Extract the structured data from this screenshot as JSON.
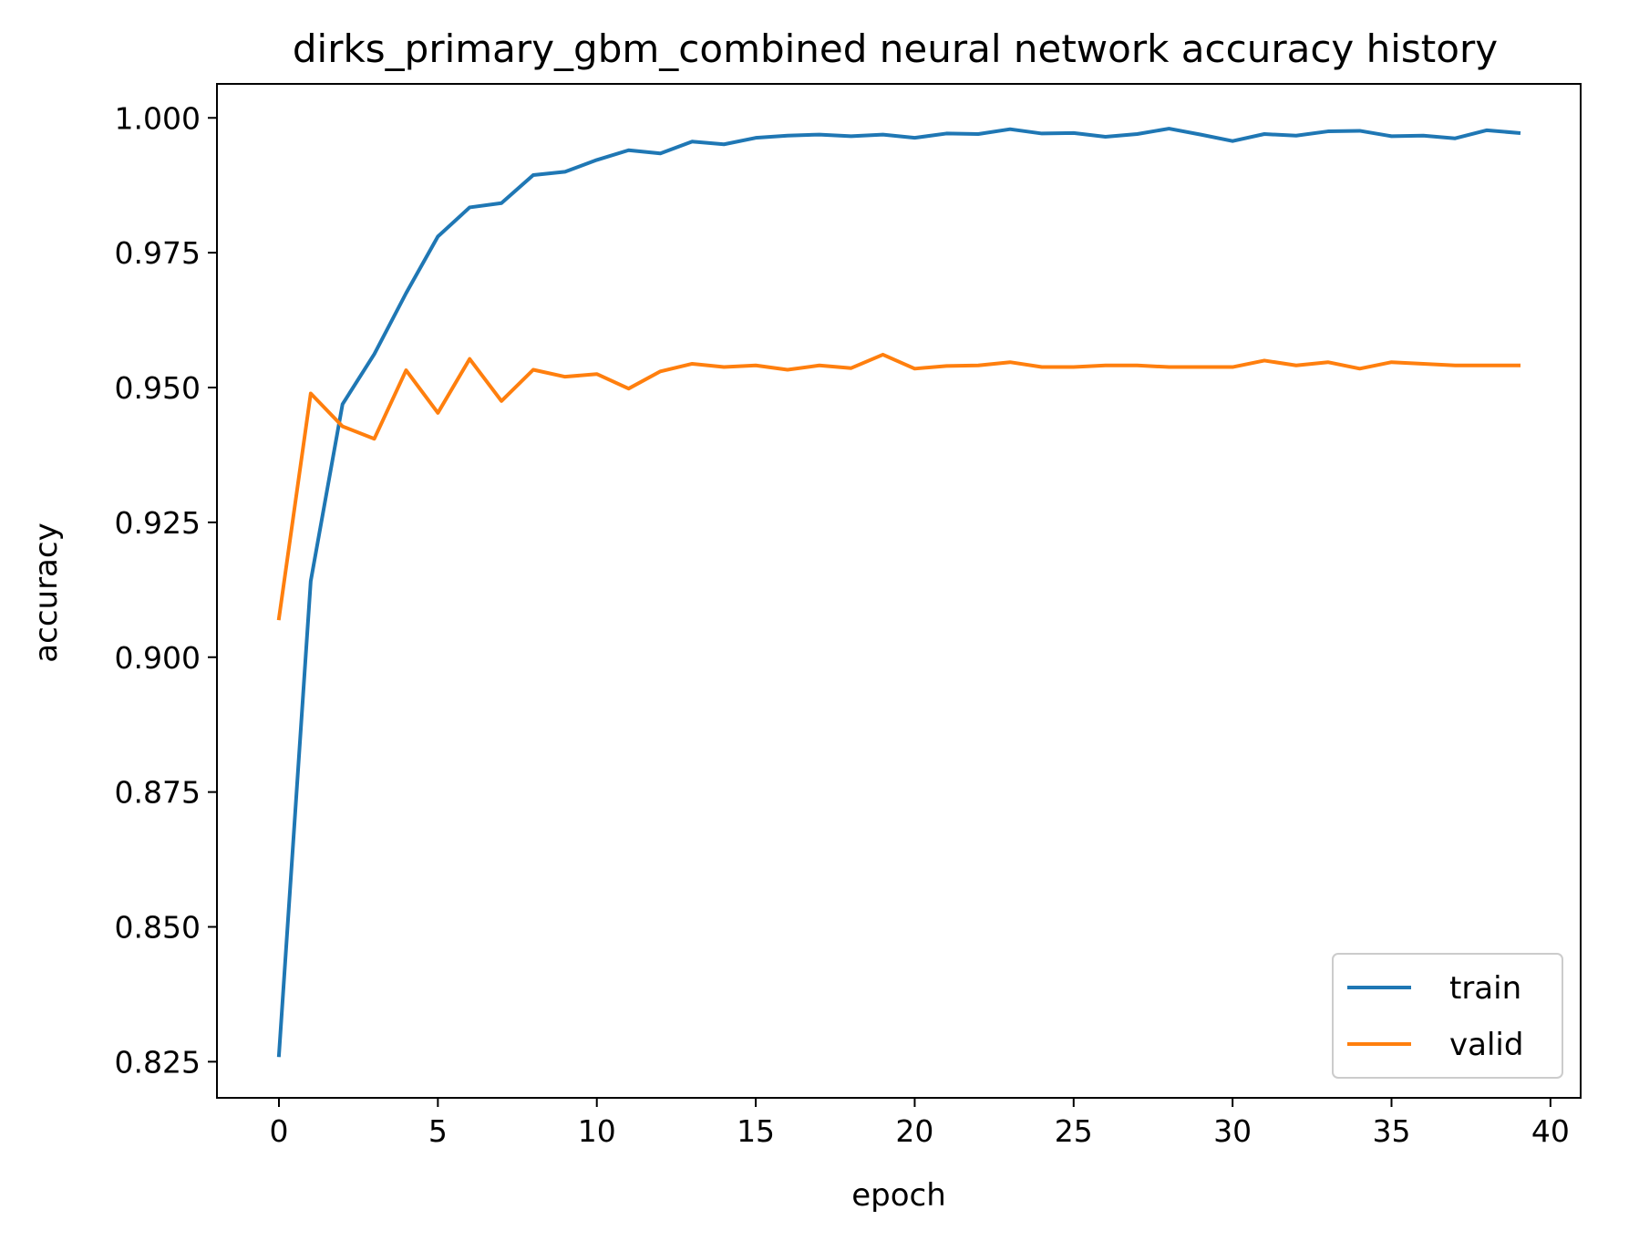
{
  "chart_data": {
    "type": "line",
    "title": "dirks_primary_gbm_combined neural network accuracy history",
    "xlabel": "epoch",
    "ylabel": "accuracy",
    "xlim": [
      -1.95,
      40.95
    ],
    "ylim": [
      0.8183,
      1.0063
    ],
    "xticks": [
      0,
      5,
      10,
      15,
      20,
      25,
      30,
      35,
      40
    ],
    "xtick_labels": [
      "0",
      "5",
      "10",
      "15",
      "20",
      "25",
      "30",
      "35",
      "40"
    ],
    "yticks": [
      0.825,
      0.85,
      0.875,
      0.9,
      0.925,
      0.95,
      0.975,
      1.0
    ],
    "ytick_labels": [
      "0.825",
      "0.850",
      "0.875",
      "0.900",
      "0.925",
      "0.950",
      "0.975",
      "1.000"
    ],
    "x": [
      0,
      1,
      2,
      3,
      4,
      5,
      6,
      7,
      8,
      9,
      10,
      11,
      12,
      13,
      14,
      15,
      16,
      17,
      18,
      19,
      20,
      21,
      22,
      23,
      24,
      25,
      26,
      27,
      28,
      29,
      30,
      31,
      32,
      33,
      34,
      35,
      36,
      37,
      38,
      39
    ],
    "series": [
      {
        "name": "train",
        "color": "#1f77b4",
        "values": [
          0.8262,
          0.9141,
          0.9469,
          0.9562,
          0.9675,
          0.978,
          0.9834,
          0.9842,
          0.9894,
          0.99,
          0.9922,
          0.994,
          0.9934,
          0.9956,
          0.9951,
          0.9963,
          0.9967,
          0.9969,
          0.9966,
          0.9969,
          0.9963,
          0.9971,
          0.997,
          0.9979,
          0.9971,
          0.9972,
          0.9965,
          0.997,
          0.998,
          0.9969,
          0.9957,
          0.997,
          0.9967,
          0.9975,
          0.9976,
          0.9966,
          0.9967,
          0.9962,
          0.9977,
          0.9972
        ]
      },
      {
        "name": "valid",
        "color": "#ff7f0e",
        "values": [
          0.9072,
          0.9489,
          0.9428,
          0.9405,
          0.9532,
          0.9453,
          0.9553,
          0.9475,
          0.9533,
          0.952,
          0.9525,
          0.9498,
          0.953,
          0.9544,
          0.9538,
          0.9541,
          0.9533,
          0.9541,
          0.9536,
          0.9561,
          0.9535,
          0.954,
          0.9541,
          0.9547,
          0.9538,
          0.9538,
          0.9541,
          0.9541,
          0.9538,
          0.9538,
          0.9538,
          0.955,
          0.9541,
          0.9547,
          0.9535,
          0.9547,
          0.9544,
          0.9541,
          0.9541,
          0.9541
        ]
      }
    ],
    "legend": {
      "position": "bottom-right",
      "entries": [
        "train",
        "valid"
      ]
    },
    "grid": false
  }
}
